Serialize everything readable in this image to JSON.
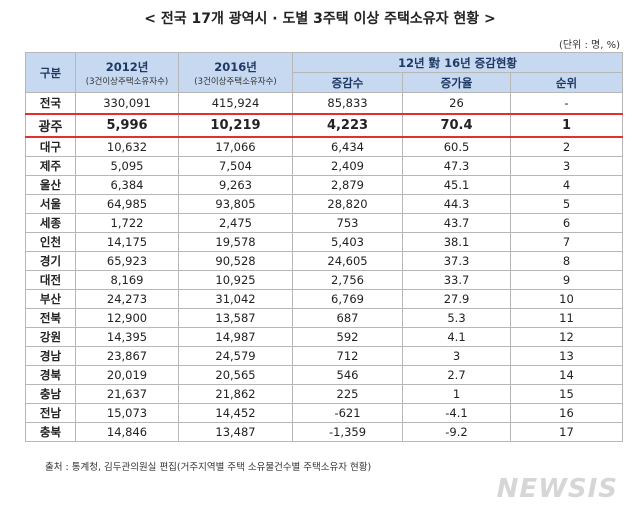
{
  "title": "< 전국 17개 광역시 · 도별 3주택 이상 주택소유자 현황 >",
  "unit": "(단위 : 명, %)",
  "table": {
    "header": {
      "category": "구분",
      "col2012": {
        "label": "2012년",
        "note": "(3건이상주택소유자수)"
      },
      "col2016": {
        "label": "2016년",
        "note": "(3건이상주택소유자수)"
      },
      "change": {
        "label": "12년 對 16년 증감현황",
        "sub": [
          "증감수",
          "증가율",
          "순위"
        ]
      }
    },
    "rows": [
      [
        "전국",
        "330,091",
        "415,924",
        "85,833",
        "26",
        "-"
      ],
      [
        "광주",
        "5,996",
        "10,219",
        "4,223",
        "70.4",
        "1"
      ],
      [
        "대구",
        "10,632",
        "17,066",
        "6,434",
        "60.5",
        "2"
      ],
      [
        "제주",
        "5,095",
        "7,504",
        "2,409",
        "47.3",
        "3"
      ],
      [
        "울산",
        "6,384",
        "9,263",
        "2,879",
        "45.1",
        "4"
      ],
      [
        "서울",
        "64,985",
        "93,805",
        "28,820",
        "44.3",
        "5"
      ],
      [
        "세종",
        "1,722",
        "2,475",
        "753",
        "43.7",
        "6"
      ],
      [
        "인천",
        "14,175",
        "19,578",
        "5,403",
        "38.1",
        "7"
      ],
      [
        "경기",
        "65,923",
        "90,528",
        "24,605",
        "37.3",
        "8"
      ],
      [
        "대전",
        "8,169",
        "10,925",
        "2,756",
        "33.7",
        "9"
      ],
      [
        "부산",
        "24,273",
        "31,042",
        "6,769",
        "27.9",
        "10"
      ],
      [
        "전북",
        "12,900",
        "13,587",
        "687",
        "5.3",
        "11"
      ],
      [
        "강원",
        "14,395",
        "14,987",
        "592",
        "4.1",
        "12"
      ],
      [
        "경남",
        "23,867",
        "24,579",
        "712",
        "3",
        "13"
      ],
      [
        "경북",
        "20,019",
        "20,565",
        "546",
        "2.7",
        "14"
      ],
      [
        "충남",
        "21,637",
        "21,862",
        "225",
        "1",
        "15"
      ],
      [
        "전남",
        "15,073",
        "14,452",
        "-621",
        "-4.1",
        "16"
      ],
      [
        "충북",
        "14,846",
        "13,487",
        "-1,359",
        "-9.2",
        "17"
      ]
    ]
  },
  "source": "출처 : 통계청, 김두관의원실 편집(거주지역별 주택 소유물건수별 주택소유자 현황)",
  "watermark": "NEWSIS"
}
